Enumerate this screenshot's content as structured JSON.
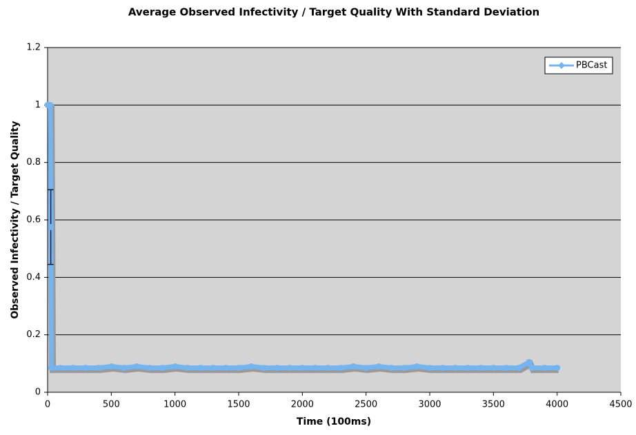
{
  "chart_data": {
    "type": "line",
    "title": "Average Observed Infectivity / Target Quality With Standard Deviation",
    "x_label": "Time (100ms)",
    "y_label": "Observed Infectivity / Target Quality",
    "x": [
      0,
      10,
      20,
      25,
      30,
      100,
      200,
      300,
      400,
      500,
      600,
      700,
      800,
      900,
      1000,
      1100,
      1200,
      1300,
      1400,
      1500,
      1600,
      1700,
      1800,
      1900,
      2000,
      2100,
      2200,
      2300,
      2400,
      2500,
      2600,
      2700,
      2800,
      2900,
      3000,
      3100,
      3200,
      3300,
      3400,
      3500,
      3600,
      3700,
      3780,
      3800,
      3900,
      4000
    ],
    "series": [
      {
        "name": "PBCast",
        "color": "#74b4ef",
        "values": [
          1,
          1,
          1,
          0.575,
          0.085,
          0.085,
          0.085,
          0.085,
          0.085,
          0.09,
          0.085,
          0.09,
          0.085,
          0.085,
          0.09,
          0.085,
          0.085,
          0.085,
          0.085,
          0.085,
          0.09,
          0.085,
          0.085,
          0.085,
          0.085,
          0.085,
          0.085,
          0.085,
          0.09,
          0.085,
          0.09,
          0.085,
          0.085,
          0.09,
          0.085,
          0.085,
          0.085,
          0.085,
          0.085,
          0.085,
          0.085,
          0.085,
          0.105,
          0.085,
          0.085,
          0.085
        ],
        "errors": [
          null,
          null,
          null,
          0.13,
          null,
          null,
          null,
          null,
          null,
          null,
          null,
          null,
          null,
          null,
          null,
          null,
          null,
          null,
          null,
          null,
          null,
          null,
          null,
          null,
          null,
          null,
          null,
          null,
          null,
          null,
          null,
          null,
          null,
          null,
          null,
          null,
          null,
          null,
          null,
          null,
          null,
          null,
          null,
          null,
          null,
          null
        ]
      }
    ],
    "xlim": [
      0,
      4500
    ],
    "xticks": [
      0,
      500,
      1000,
      1500,
      2000,
      2500,
      3000,
      3500,
      4000,
      4500
    ],
    "ylim": [
      0,
      1.2
    ],
    "yticks": [
      0,
      0.2,
      0.4,
      0.6,
      0.8,
      1,
      1.2
    ],
    "grid": true,
    "legend": "top-right"
  }
}
